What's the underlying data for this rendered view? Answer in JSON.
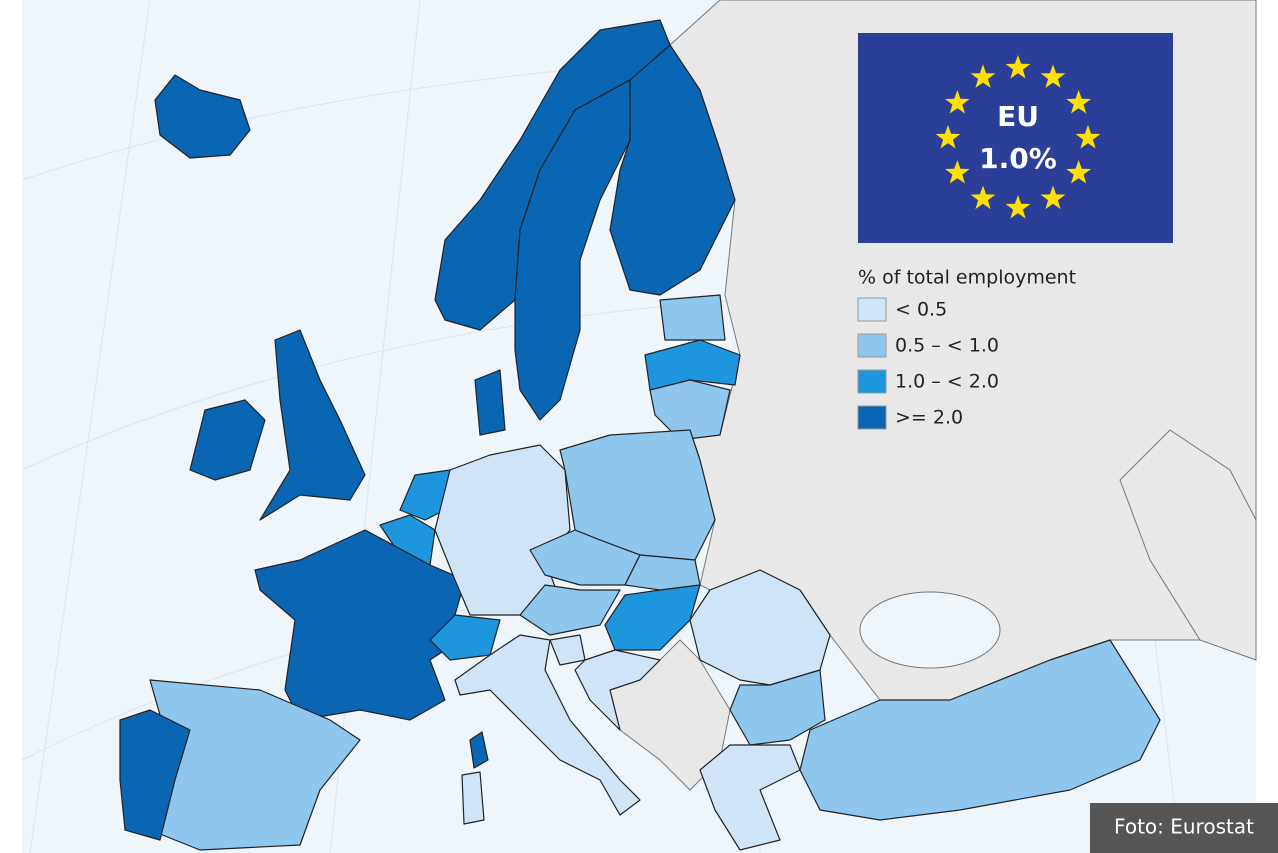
{
  "flag": {
    "title": "EU",
    "value": "1.0%"
  },
  "legend": {
    "title": "% of  total employment",
    "items": [
      {
        "label": "< 0.5",
        "color": "#cfe5f7"
      },
      {
        "label": "0.5 – < 1.0",
        "color": "#8ec6ee"
      },
      {
        "label": "1.0 – < 2.0",
        "color": "#1e96dd"
      },
      {
        "label": ">= 2.0",
        "color": "#0a66b3"
      }
    ]
  },
  "credit": "Foto: Eurostat"
}
